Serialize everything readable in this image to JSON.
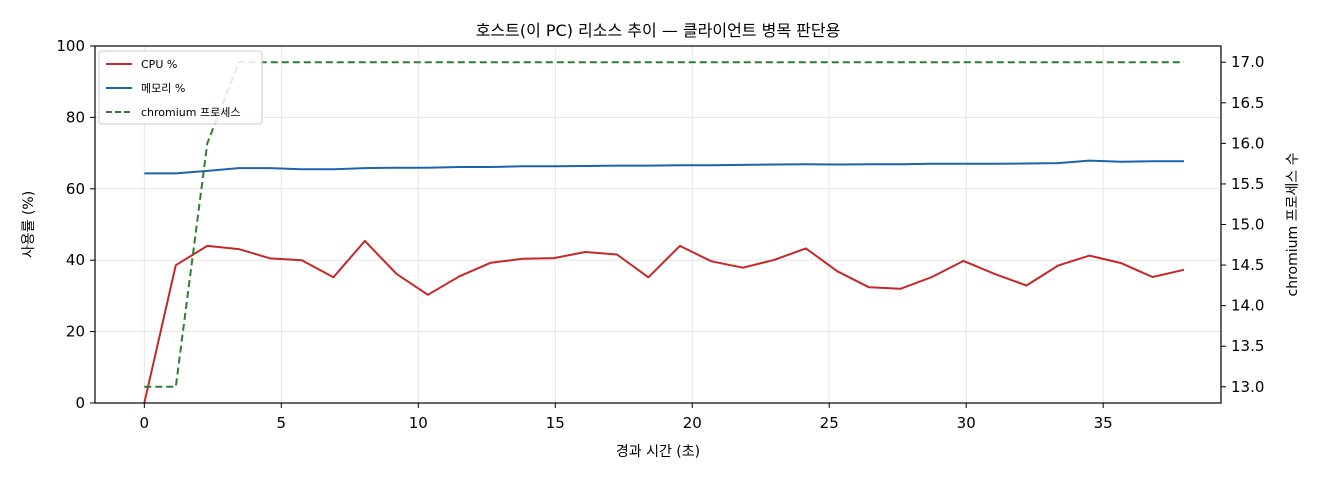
{
  "chart_data": {
    "type": "line",
    "title": "호스트(이 PC) 리소스 추이 — 클라이언트 병목 판단용",
    "xlabel": "경과 시간 (초)",
    "ylabel": "사용률 (%)",
    "y2label": "chromium 프로세스 수",
    "xlim": [
      -1.8,
      39.3
    ],
    "ylim": [
      0,
      100
    ],
    "y2lim": [
      12.8,
      17.2
    ],
    "xticks": [
      "0",
      "5",
      "10",
      "15",
      "20",
      "25",
      "30",
      "35"
    ],
    "yticks": [
      "0",
      "20",
      "40",
      "60",
      "80",
      "100"
    ],
    "y2ticks": [
      "13.0",
      "13.5",
      "14.0",
      "14.5",
      "15.0",
      "15.5",
      "16.0",
      "16.5",
      "17.0"
    ],
    "grid": true,
    "legend_position": "top-left",
    "series": [
      {
        "name": "CPU %",
        "axis": "left",
        "color": "#c62828",
        "style": "solid",
        "x": [
          0,
          1.15,
          2.3,
          3.45,
          4.6,
          5.75,
          6.9,
          8.05,
          9.2,
          10.35,
          11.5,
          12.65,
          13.8,
          14.95,
          16.1,
          17.25,
          18.4,
          19.55,
          20.7,
          21.85,
          23.0,
          24.15,
          25.3,
          26.45,
          27.6,
          28.75,
          29.9,
          31.05,
          32.2,
          33.35,
          34.5,
          35.65,
          36.8,
          37.95
        ],
        "values": [
          0,
          38.6,
          44.0,
          43.1,
          40.5,
          40.0,
          35.2,
          45.4,
          36.2,
          30.3,
          35.5,
          39.3,
          40.4,
          40.6,
          42.3,
          41.6,
          35.2,
          44.0,
          39.7,
          37.9,
          40.1,
          43.3,
          36.9,
          32.4,
          32.0,
          35.3,
          39.8,
          36.1,
          32.9,
          38.5,
          41.3,
          39.2,
          35.3,
          37.3
        ]
      },
      {
        "name": "메모리 %",
        "axis": "left",
        "color": "#1e63b0",
        "style": "solid",
        "x": [
          0,
          1.15,
          2.3,
          3.45,
          4.6,
          5.75,
          6.9,
          8.05,
          9.2,
          10.35,
          11.5,
          12.65,
          13.8,
          14.95,
          16.1,
          17.25,
          18.4,
          19.55,
          20.7,
          21.85,
          23.0,
          24.15,
          25.3,
          26.45,
          27.6,
          28.75,
          29.9,
          31.05,
          32.2,
          33.35,
          34.5,
          35.65,
          36.8,
          37.95
        ],
        "values": [
          64.3,
          64.3,
          65.0,
          65.8,
          65.8,
          65.5,
          65.5,
          65.8,
          65.9,
          65.9,
          66.1,
          66.1,
          66.3,
          66.3,
          66.4,
          66.5,
          66.5,
          66.6,
          66.6,
          66.7,
          66.8,
          66.9,
          66.8,
          66.9,
          66.9,
          67.0,
          67.0,
          67.0,
          67.1,
          67.2,
          67.9,
          67.6,
          67.7,
          67.7
        ]
      },
      {
        "name": "chromium 프로세스",
        "axis": "right",
        "color": "#2e7d32",
        "style": "dashed",
        "x": [
          0,
          1.15,
          2.3,
          3.45,
          4.6,
          5.75,
          6.9,
          8.05,
          9.2,
          10.35,
          11.5,
          12.65,
          13.8,
          14.95,
          16.1,
          17.25,
          18.4,
          19.55,
          20.7,
          21.85,
          23.0,
          24.15,
          25.3,
          26.45,
          27.6,
          28.75,
          29.9,
          31.05,
          32.2,
          33.35,
          34.5,
          35.65,
          36.8,
          37.95
        ],
        "values": [
          13,
          13,
          16,
          17,
          17,
          17,
          17,
          17,
          17,
          17,
          17,
          17,
          17,
          17,
          17,
          17,
          17,
          17,
          17,
          17,
          17,
          17,
          17,
          17,
          17,
          17,
          17,
          17,
          17,
          17,
          17,
          17,
          17,
          17
        ]
      }
    ]
  }
}
